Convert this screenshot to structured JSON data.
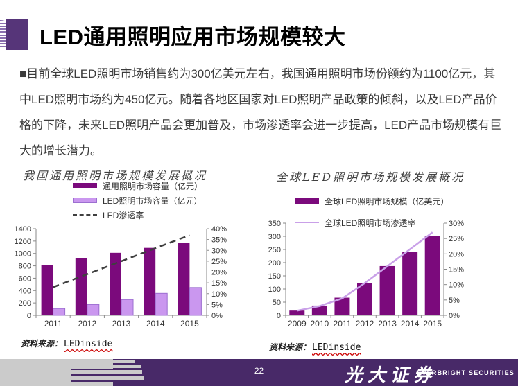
{
  "slide": {
    "title": "LED通用照明应用市场规模较大",
    "body": "■目前全球LED照明市场销售约为300亿美元左右，我国通用照明市场份额约为1100亿元，其中LED照明市场约为450亿元。随着各地区国家对LED照明产品政策的倾斜，以及LED产品价格的下降，未来LED照明产品会更加普及，市场渗透率会进一步提高，LED产品市场规模有巨大的增长潜力。",
    "page_number": "22",
    "brand_cn": "光大证券",
    "brand_en": "EVERBRIGHT SECURITIES"
  },
  "sources": {
    "left_label": "资料来源：",
    "left_value": "LEDinside",
    "right_label": "资料来源：",
    "right_value": "LEDinside"
  },
  "colors": {
    "dark_purple_bar": "#7b0a7c",
    "light_purple_bar": "#ca97ef",
    "light_purple_border": "#9c6fd0",
    "dash_line": "#3f3f3f",
    "penetration_line": "#c9a0e8",
    "footer_purple": "#482968",
    "logo_gray": "#cbcbcb"
  },
  "chart_data": [
    {
      "type": "bar",
      "title": "我国通用照明市场规模发展概况",
      "categories": [
        "2011",
        "2012",
        "2013",
        "2014",
        "2015"
      ],
      "series": [
        {
          "name": "通用照明市场容量（亿元）",
          "type": "bar",
          "axis": "left",
          "color": "#7b0a7c",
          "values": [
            810,
            920,
            1010,
            1090,
            1170
          ]
        },
        {
          "name": "LED照明市场容量（亿元）",
          "type": "bar",
          "axis": "left",
          "color": "#ca97ef",
          "border": "#9c6fd0",
          "values": [
            110,
            175,
            255,
            355,
            450
          ]
        },
        {
          "name": "LED渗透率",
          "type": "line",
          "axis": "right",
          "dashed": true,
          "color": "#3f3f3f",
          "values": [
            13,
            19,
            25,
            31,
            37
          ]
        }
      ],
      "left_axis": {
        "min": 0,
        "max": 1400,
        "step": 200,
        "ticks": [
          "0",
          "200",
          "400",
          "600",
          "800",
          "1000",
          "1200",
          "1400"
        ]
      },
      "right_axis": {
        "min": 0,
        "max": 40,
        "step": 5,
        "suffix": "%",
        "ticks": [
          "0%",
          "5%",
          "10%",
          "15%",
          "20%",
          "25%",
          "30%",
          "35%",
          "40%"
        ]
      },
      "grid": false,
      "legend_position": "top"
    },
    {
      "type": "bar",
      "title": "全球LED照明市场规模发展概况",
      "categories": [
        "2009",
        "2010",
        "2011",
        "2012",
        "2013",
        "2014",
        "2015"
      ],
      "series": [
        {
          "name": "全球LED照明市场规模（亿美元）",
          "type": "bar",
          "axis": "left",
          "color": "#7b0a7c",
          "values": [
            18,
            37,
            67,
            122,
            187,
            240,
            300
          ]
        },
        {
          "name": "全球LED照明市场渗透率",
          "type": "line",
          "axis": "right",
          "dashed": false,
          "color": "#c9a0e8",
          "values": [
            1.5,
            3,
            5.5,
            10.5,
            16,
            21.5,
            27
          ]
        }
      ],
      "left_axis": {
        "min": 0,
        "max": 350,
        "step": 50,
        "ticks": [
          "0",
          "50",
          "100",
          "150",
          "200",
          "250",
          "300",
          "350"
        ]
      },
      "right_axis": {
        "min": 0,
        "max": 30,
        "step": 5,
        "suffix": "%",
        "ticks": [
          "0%",
          "5%",
          "10%",
          "15%",
          "20%",
          "25%",
          "30%"
        ]
      },
      "grid": false,
      "legend_position": "top"
    }
  ]
}
